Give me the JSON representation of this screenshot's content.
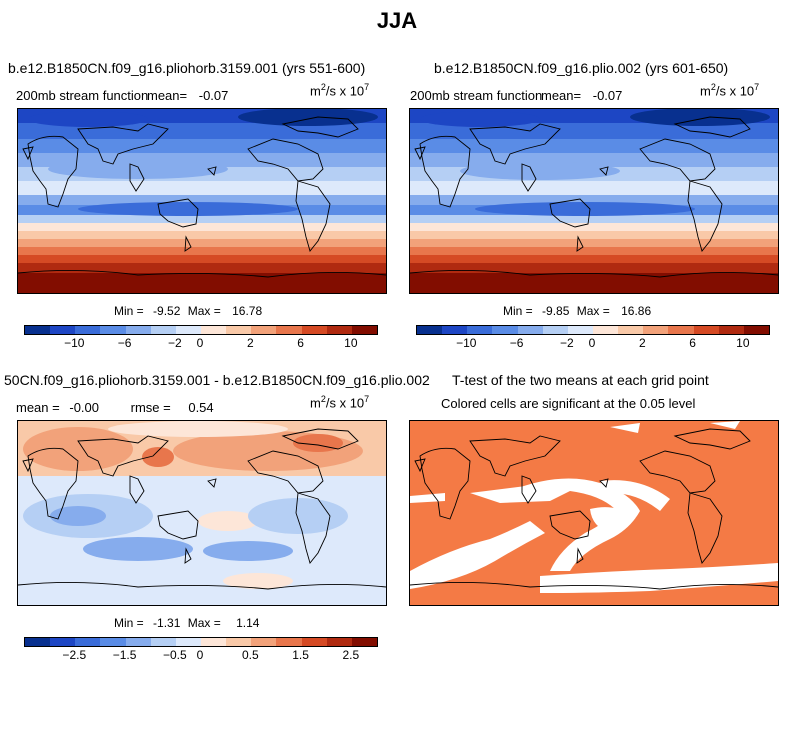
{
  "title": "JJA",
  "colors": {
    "palette": [
      "#08308f",
      "#1d46c4",
      "#3a6cd9",
      "#5a8ce6",
      "#86aced",
      "#b5cff4",
      "#dde9fb",
      "#fde6d8",
      "#f9c9a8",
      "#f2a27a",
      "#e8764c",
      "#d54a24",
      "#b02a10",
      "#820d00"
    ],
    "significant": "#f47a45",
    "insignificant": "#ffffff"
  },
  "panels": [
    {
      "title": "b.e12.B1850CN.f09_g16.pliohorb.3159.001 (yrs 551-600)",
      "var_label": "200mb stream function",
      "mean_label": "mean=",
      "mean_value": "-0.07",
      "units_base": "m",
      "units_mid": "/s x 10",
      "units_sup1": "2",
      "units_sup2": "7",
      "min_label": "Min =",
      "min_value": "-9.52",
      "max_label": "Max =",
      "max_value": "16.78",
      "cbar_labels": [
        "−10",
        "−6",
        "−2",
        "0",
        "2",
        "6",
        "10"
      ]
    },
    {
      "title": "b.e12.B1850CN.f09_g16.plio.002 (yrs 601-650)",
      "var_label": "200mb stream function",
      "mean_label": "mean=",
      "mean_value": "-0.07",
      "units_base": "m",
      "units_mid": "/s x 10",
      "units_sup1": "2",
      "units_sup2": "7",
      "min_label": "Min =",
      "min_value": "-9.85",
      "max_label": "Max =",
      "max_value": "16.86",
      "cbar_labels": [
        "−10",
        "−6",
        "−2",
        "0",
        "2",
        "6",
        "10"
      ]
    },
    {
      "title": "50CN.f09_g16.pliohorb.3159.001 - b.e12.B1850CN.f09_g16.plio.002",
      "mean_label": "mean =",
      "mean_value": "-0.00",
      "rmse_label": "rmse =",
      "rmse_value": "0.54",
      "units_base": "m",
      "units_mid": "/s x 10",
      "units_sup1": "2",
      "units_sup2": "7",
      "min_label": "Min =",
      "min_value": "-1.31",
      "max_label": "Max =",
      "max_value": "1.14",
      "cbar_labels": [
        "−2.5",
        "−1.5",
        "−0.5",
        "0",
        "0.5",
        "1.5",
        "2.5"
      ]
    },
    {
      "title": "T-test of the two means at each grid point",
      "subtitle": "Colored cells are significant at the 0.05 level"
    }
  ],
  "chart_data": [
    {
      "type": "heatmap",
      "title": "b.e12.B1850CN.f09_g16.pliohorb.3159.001 (yrs 551-600)",
      "variable": "200mb stream function",
      "units": "m^2/s x 10^7",
      "mean": -0.07,
      "min": -9.52,
      "max": 16.78,
      "colorbar_ticks": [
        -10,
        -6,
        -2,
        0,
        2,
        6,
        10
      ],
      "pattern": "negative (blue) in northern hemisphere, positive (red) increasing toward south"
    },
    {
      "type": "heatmap",
      "title": "b.e12.B1850CN.f09_g16.plio.002 (yrs 601-650)",
      "variable": "200mb stream function",
      "units": "m^2/s x 10^7",
      "mean": -0.07,
      "min": -9.85,
      "max": 16.86,
      "colorbar_ticks": [
        -10,
        -6,
        -2,
        0,
        2,
        6,
        10
      ]
    },
    {
      "type": "heatmap",
      "title": "50CN.f09_g16.pliohorb.3159.001 - b.e12.B1850CN.f09_g16.plio.002",
      "units": "m^2/s x 10^7",
      "mean": -0.0,
      "rmse": 0.54,
      "min": -1.31,
      "max": 1.14,
      "colorbar_ticks": [
        -2.5,
        -1.5,
        -0.5,
        0,
        0.5,
        1.5,
        2.5
      ]
    },
    {
      "type": "heatmap",
      "title": "T-test of the two means at each grid point",
      "subtitle": "Colored cells are significant at the 0.05 level",
      "significance_level": 0.05
    }
  ]
}
